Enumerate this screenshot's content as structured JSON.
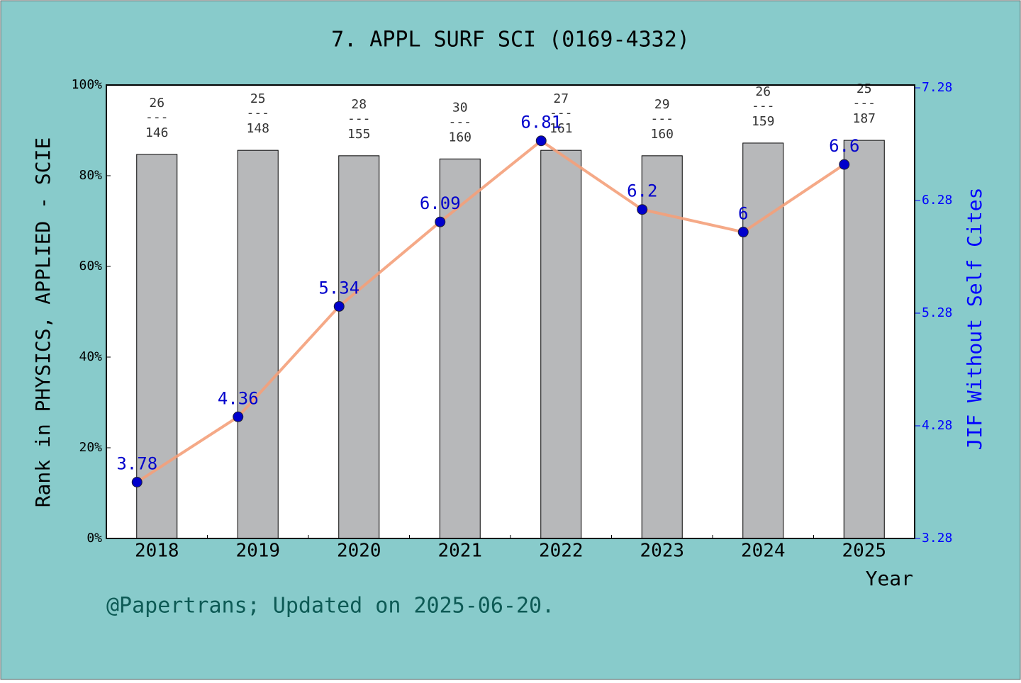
{
  "chart_data": {
    "type": "bar_line",
    "title": "7. APPL SURF SCI (0169-4332)",
    "y_label": "Rank in PHYSICS, APPLIED - SCIE",
    "y2_label": "JIF Without Self Cites",
    "x_label": "Year",
    "note": "@Papertrans; Updated on 2025-06-20.",
    "categories": [
      "2018",
      "2019",
      "2020",
      "2021",
      "2022",
      "2023",
      "2024",
      "2025"
    ],
    "series": [
      {
        "name": "Rank percentile",
        "type": "bar",
        "color": "#b7b8ba",
        "values": [
          84.7,
          85.6,
          84.4,
          83.7,
          85.6,
          84.4,
          87.2,
          87.8
        ],
        "ranks": [
          26,
          25,
          28,
          30,
          27,
          29,
          26,
          25
        ],
        "totals": [
          146,
          148,
          155,
          160,
          161,
          160,
          159,
          187
        ],
        "separator": "---"
      },
      {
        "name": "JIF Without Self Cites",
        "type": "line",
        "axis": "y2",
        "color": "#f4a07a",
        "marker_color": "#0000cc",
        "values": [
          3.78,
          4.36,
          5.34,
          6.09,
          6.81,
          6.2,
          6,
          6.6
        ]
      }
    ],
    "ylim": [
      0,
      100
    ],
    "yticks": [
      {
        "value": 0,
        "label": "0%"
      },
      {
        "value": 20,
        "label": "20%"
      },
      {
        "value": 40,
        "label": "40%"
      },
      {
        "value": 60,
        "label": "60%"
      },
      {
        "value": 80,
        "label": "80%"
      },
      {
        "value": 100,
        "label": "100%"
      }
    ],
    "y2lim": [
      3.28,
      7.28
    ],
    "y2ticks": [
      3.28,
      4.28,
      5.28,
      6.28,
      7.28
    ]
  }
}
